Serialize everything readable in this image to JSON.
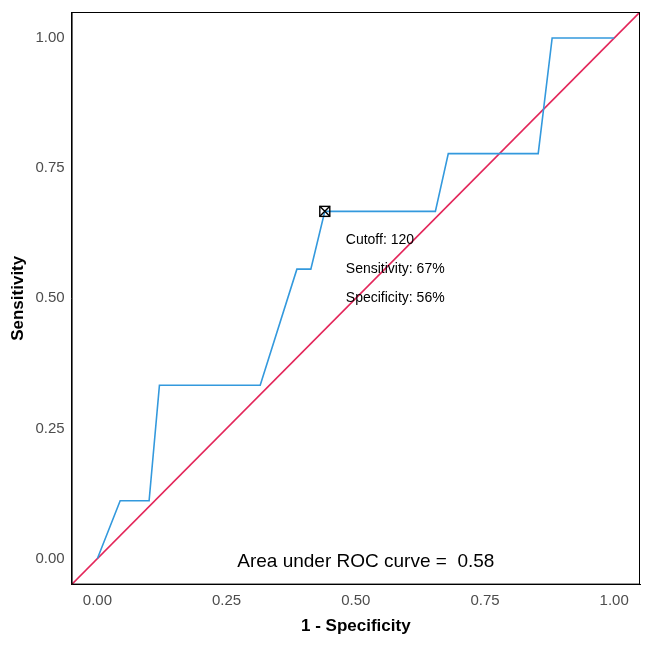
{
  "chart_data": {
    "type": "line",
    "x_label": "1 - Specificity",
    "y_label": "Sensitivity",
    "xlim": [
      -0.05,
      1.05
    ],
    "ylim": [
      -0.05,
      1.05
    ],
    "xticks": [
      {
        "value": 0,
        "label": "0.00"
      },
      {
        "value": 0.25,
        "label": "0.25"
      },
      {
        "value": 0.5,
        "label": "0.50"
      },
      {
        "value": 0.75,
        "label": "0.75"
      },
      {
        "value": 1,
        "label": "1.00"
      }
    ],
    "yticks": [
      {
        "value": 0,
        "label": "0.00"
      },
      {
        "value": 0.25,
        "label": "0.25"
      },
      {
        "value": 0.5,
        "label": "0.50"
      },
      {
        "value": 0.75,
        "label": "0.75"
      },
      {
        "value": 1,
        "label": "1.00"
      }
    ],
    "grid": false,
    "legend": false,
    "series": [
      {
        "color": "#3399dd",
        "x": [
          0,
          0.044,
          0.1,
          0.12,
          0.315,
          0.386,
          0.413,
          0.44,
          0.654,
          0.679,
          0.853,
          0.88,
          1.0
        ],
        "values": [
          0,
          0.111,
          0.111,
          0.333,
          0.333,
          0.556,
          0.556,
          0.667,
          0.667,
          0.778,
          0.778,
          1.0,
          1.0
        ]
      },
      {
        "color": "#e3265a",
        "x": [
          -0.05,
          1.05
        ],
        "values": [
          -0.05,
          1.05
        ]
      }
    ],
    "annotations": [
      {
        "x": 0.44,
        "y": 0.667,
        "marker": "square-cross",
        "lines": [
          "Cutoff: 120",
          "Sensitivity: 67%",
          "Specificity: 56%"
        ]
      },
      {
        "text": "Area under ROC curve =  0.58"
      }
    ]
  }
}
